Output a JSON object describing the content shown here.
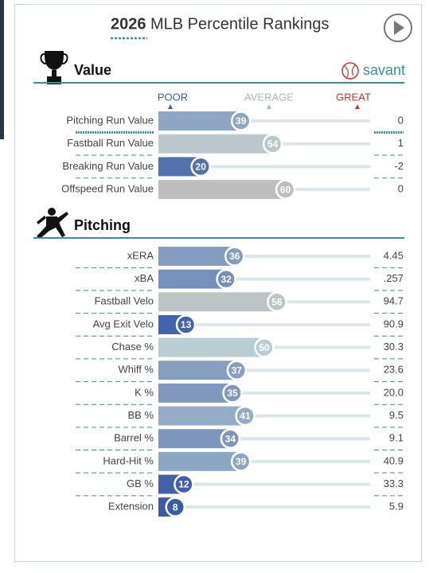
{
  "header": {
    "year": "2026",
    "title": "MLB Percentile Rankings"
  },
  "brand": "savant",
  "scale": {
    "poor": "POOR",
    "average": "AVERAGE",
    "great": "GREAT"
  },
  "sections": [
    {
      "title": "Value",
      "rows": [
        {
          "label": "Pitching Run Value",
          "percentile": 39,
          "value": "0"
        },
        {
          "label": "Fastball Run Value",
          "percentile": 54,
          "value": "1"
        },
        {
          "label": "Breaking Run Value",
          "percentile": 20,
          "value": "-2"
        },
        {
          "label": "Offspeed Run Value",
          "percentile": 60,
          "value": "0"
        }
      ]
    },
    {
      "title": "Pitching",
      "rows": [
        {
          "label": "xERA",
          "percentile": 36,
          "value": "4.45"
        },
        {
          "label": "xBA",
          "percentile": 32,
          "value": ".257"
        },
        {
          "label": "Fastball Velo",
          "percentile": 56,
          "value": "94.7"
        },
        {
          "label": "Avg Exit Velo",
          "percentile": 13,
          "value": "90.9"
        },
        {
          "label": "Chase %",
          "percentile": 50,
          "value": "30.3"
        },
        {
          "label": "Whiff %",
          "percentile": 37,
          "value": "23.6"
        },
        {
          "label": "K %",
          "percentile": 35,
          "value": "20.0"
        },
        {
          "label": "BB %",
          "percentile": 41,
          "value": "9.5"
        },
        {
          "label": "Barrel %",
          "percentile": 34,
          "value": "9.1"
        },
        {
          "label": "Hard-Hit %",
          "percentile": 39,
          "value": "40.9"
        },
        {
          "label": "GB %",
          "percentile": 12,
          "value": "33.3"
        },
        {
          "label": "Extension",
          "percentile": 8,
          "value": "5.9"
        }
      ]
    }
  ]
}
